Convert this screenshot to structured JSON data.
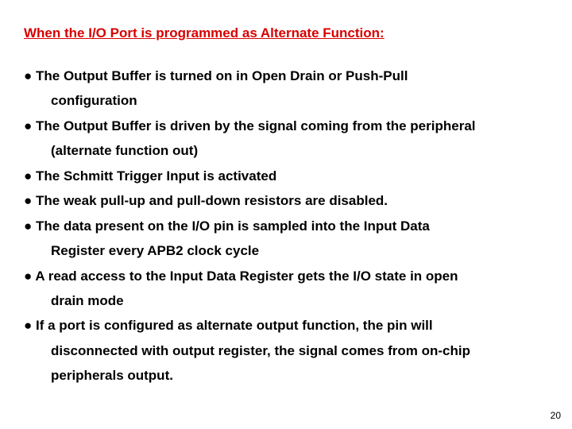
{
  "title_color": "#d80000",
  "body_color": "#000000",
  "title": "When the I/O Port is programmed as Alternate Function:",
  "bullets": [
    {
      "line1": "● The Output Buffer is turned on in Open Drain or Push-Pull",
      "line2": "configuration"
    },
    {
      "line1": "● The Output Buffer is driven by the signal coming from the peripheral",
      "line2": "(alternate function out)"
    },
    {
      "line1": "● The Schmitt Trigger Input is activated"
    },
    {
      "line1": "● The weak pull-up and pull-down resistors are disabled."
    },
    {
      "line1": "● The data present on the I/O pin is sampled into the Input Data",
      "line2": "Register every APB2 clock cycle"
    },
    {
      "line1": "● A read access to the Input Data Register gets the I/O state in open",
      "line2": "drain mode"
    },
    {
      "line1": "● If a port is configured as alternate output function, the pin will",
      "line2": "disconnected with output register, the signal comes from on-chip",
      "line3": "peripherals output."
    }
  ],
  "page_number": "20"
}
